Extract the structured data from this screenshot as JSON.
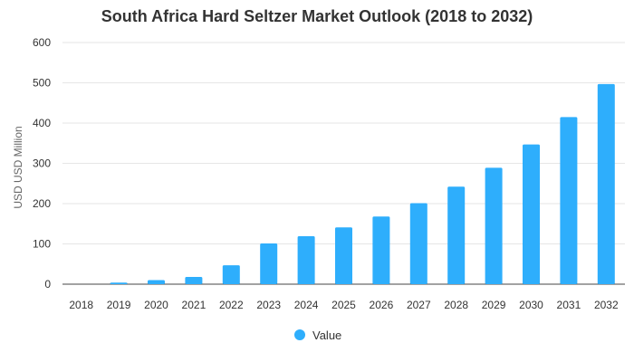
{
  "chart_data": {
    "type": "bar",
    "title": "South Africa Hard Seltzer Market Outlook (2018 to 2032)",
    "xlabel": "",
    "ylabel": "USD USD Million",
    "ylim": [
      0,
      600
    ],
    "yticks": [
      0,
      100,
      200,
      300,
      400,
      500,
      600
    ],
    "grid": true,
    "legend_position": "bottom",
    "categories": [
      "2018",
      "2019",
      "2020",
      "2021",
      "2022",
      "2023",
      "2024",
      "2025",
      "2026",
      "2027",
      "2028",
      "2029",
      "2030",
      "2031",
      "2032"
    ],
    "series": [
      {
        "name": "Value",
        "color": "#2eaefc",
        "values": [
          0,
          4,
          10,
          18,
          47,
          101,
          119,
          141,
          168,
          201,
          242,
          289,
          347,
          415,
          497
        ]
      }
    ]
  }
}
